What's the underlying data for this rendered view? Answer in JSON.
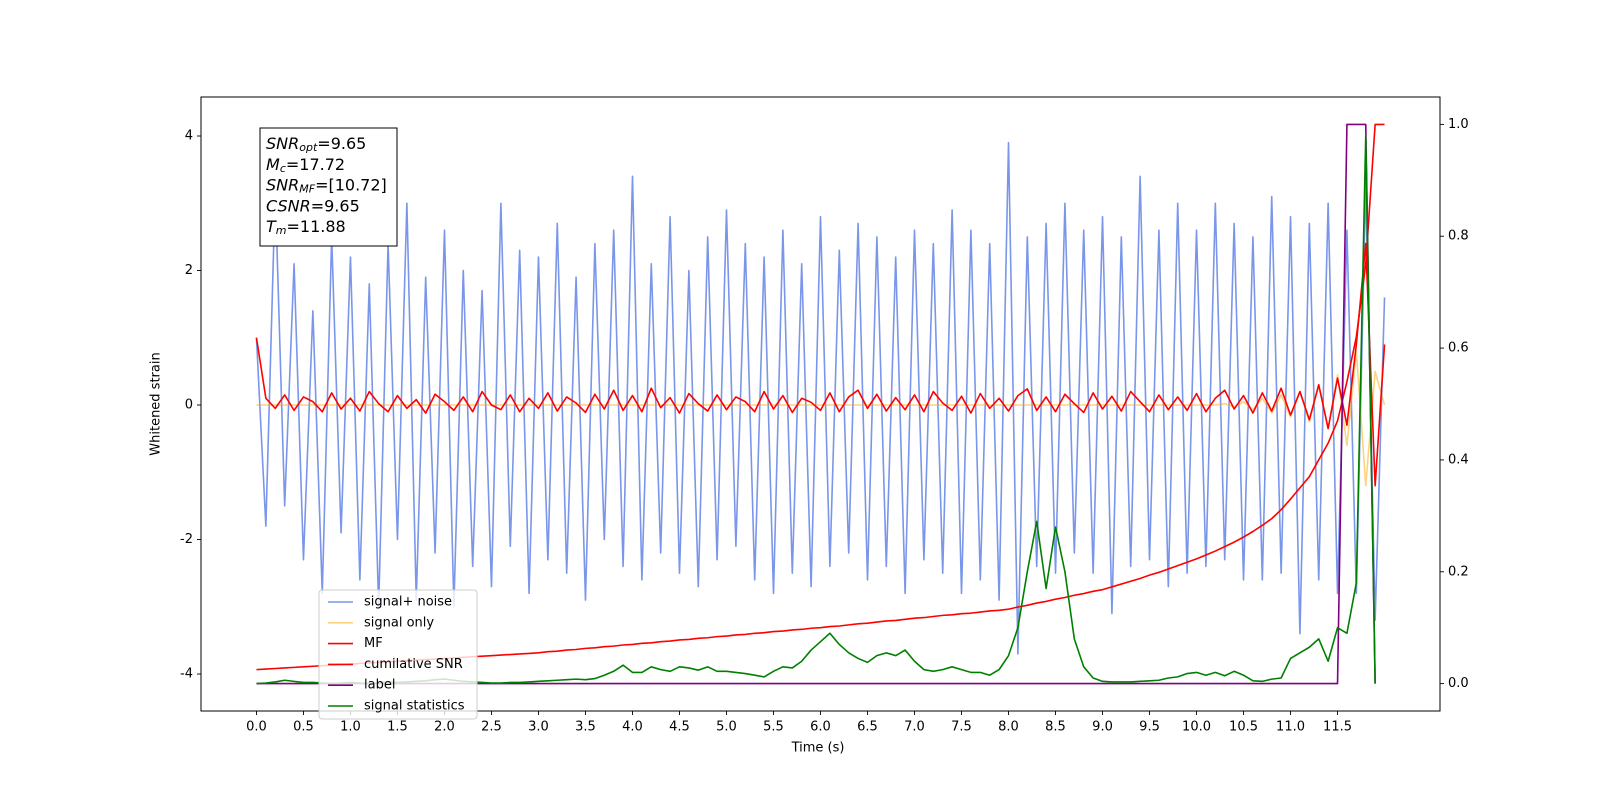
{
  "chart_data": {
    "type": "line",
    "xlabel": "Time (s)",
    "ylabel": "Whitened strain",
    "xlim": [
      -0.59,
      12.59
    ],
    "ylim": [
      -4.55,
      4.58
    ],
    "y2lim": [
      -0.049,
      1.049
    ],
    "xticks": [
      {
        "value": 0,
        "label": "0.0"
      },
      {
        "value": 0.5,
        "label": "0.5"
      },
      {
        "value": 1,
        "label": "1.0"
      },
      {
        "value": 1.5,
        "label": "1.5"
      },
      {
        "value": 2,
        "label": "2.0"
      },
      {
        "value": 2.5,
        "label": "2.5"
      },
      {
        "value": 3,
        "label": "3.0"
      },
      {
        "value": 3.5,
        "label": "3.5"
      },
      {
        "value": 4,
        "label": "4.0"
      },
      {
        "value": 4.5,
        "label": "4.5"
      },
      {
        "value": 5,
        "label": "5.0"
      },
      {
        "value": 5.5,
        "label": "5.5"
      },
      {
        "value": 6,
        "label": "6.0"
      },
      {
        "value": 6.5,
        "label": "6.5"
      },
      {
        "value": 7,
        "label": "7.0"
      },
      {
        "value": 7.5,
        "label": "7.5"
      },
      {
        "value": 8,
        "label": "8.0"
      },
      {
        "value": 8.5,
        "label": "8.5"
      },
      {
        "value": 9,
        "label": "9.0"
      },
      {
        "value": 9.5,
        "label": "9.5"
      },
      {
        "value": 10,
        "label": "10.0"
      },
      {
        "value": 10.5,
        "label": "10.5"
      },
      {
        "value": 11,
        "label": "11.0"
      },
      {
        "value": 11.5,
        "label": "11.5"
      }
    ],
    "yticks": [
      -4,
      -2,
      0,
      2,
      4
    ],
    "y2ticks": [
      {
        "value": 0,
        "label": "0.0"
      },
      {
        "value": 0.2,
        "label": "0.2"
      },
      {
        "value": 0.4,
        "label": "0.4"
      },
      {
        "value": 0.6,
        "label": "0.6"
      },
      {
        "value": 0.8,
        "label": "0.8"
      },
      {
        "value": 1,
        "label": "1.0"
      }
    ],
    "legend": "best",
    "annotations": [
      {
        "symbol": "SNR",
        "sub": "opt",
        "text": "=9.65"
      },
      {
        "symbol": "M",
        "sub": "c",
        "text": "=17.72"
      },
      {
        "symbol": "SNR",
        "sub": "MF",
        "text": "=[10.72]"
      },
      {
        "symbol": "CSNR",
        "text": "=9.65"
      },
      {
        "symbol": "T",
        "sub": "m",
        "text": "=11.88"
      }
    ],
    "x": [
      0,
      0.1,
      0.2,
      0.3,
      0.4,
      0.5,
      0.6,
      0.7,
      0.8,
      0.9,
      1,
      1.1,
      1.2,
      1.3,
      1.4,
      1.5,
      1.6,
      1.7,
      1.8,
      1.9,
      2,
      2.1,
      2.2,
      2.3,
      2.4,
      2.5,
      2.6,
      2.7,
      2.8,
      2.9,
      3,
      3.1,
      3.2,
      3.3,
      3.4,
      3.5,
      3.6,
      3.7,
      3.8,
      3.9,
      4,
      4.1,
      4.2,
      4.3,
      4.4,
      4.5,
      4.6,
      4.7,
      4.8,
      4.9,
      5,
      5.1,
      5.2,
      5.3,
      5.4,
      5.5,
      5.6,
      5.7,
      5.8,
      5.9,
      6,
      6.1,
      6.2,
      6.3,
      6.4,
      6.5,
      6.6,
      6.7,
      6.8,
      6.9,
      7,
      7.1,
      7.2,
      7.3,
      7.4,
      7.5,
      7.6,
      7.7,
      7.8,
      7.9,
      8,
      8.1,
      8.2,
      8.3,
      8.4,
      8.5,
      8.6,
      8.7,
      8.8,
      8.9,
      9,
      9.1,
      9.2,
      9.3,
      9.4,
      9.5,
      9.6,
      9.7,
      9.8,
      9.9,
      10,
      10.1,
      10.2,
      10.3,
      10.4,
      10.5,
      10.6,
      10.7,
      10.8,
      10.9,
      11,
      11.1,
      11.2,
      11.3,
      11.4,
      11.5,
      11.6,
      11.7,
      11.8,
      11.9,
      12
    ],
    "series": [
      {
        "name": "signal+ noise",
        "color": "#4169e1",
        "alpha": 0.7,
        "values": [
          1.0,
          -1.8,
          3.2,
          -1.5,
          2.1,
          -2.3,
          1.4,
          -2.8,
          2.5,
          -1.9,
          2.2,
          -2.6,
          1.8,
          -3.0,
          2.4,
          -2.0,
          3.0,
          -2.9,
          1.9,
          -2.2,
          2.6,
          -3.0,
          2.0,
          -2.4,
          1.7,
          -2.7,
          3.0,
          -2.1,
          2.3,
          -2.8,
          2.2,
          -2.3,
          2.7,
          -2.5,
          1.9,
          -2.9,
          2.4,
          -2.0,
          2.6,
          -2.4,
          3.4,
          -2.6,
          2.1,
          -2.2,
          2.8,
          -2.5,
          2.0,
          -2.7,
          2.5,
          -2.3,
          2.9,
          -2.1,
          2.4,
          -2.6,
          2.2,
          -2.8,
          2.6,
          -2.5,
          2.1,
          -2.7,
          2.8,
          -2.4,
          2.3,
          -2.2,
          2.7,
          -2.6,
          2.5,
          -2.4,
          2.2,
          -2.8,
          2.6,
          -2.3,
          2.4,
          -2.5,
          2.9,
          -2.8,
          2.6,
          -2.6,
          2.4,
          -2.9,
          3.9,
          -3.7,
          2.5,
          -2.4,
          2.7,
          -2.5,
          3.0,
          -2.2,
          2.6,
          -2.5,
          2.8,
          -3.1,
          2.5,
          -2.4,
          3.4,
          -2.3,
          2.6,
          -2.7,
          3.0,
          -2.5,
          2.6,
          -2.4,
          3.0,
          -2.3,
          2.7,
          -2.6,
          2.5,
          -2.6,
          3.1,
          -2.5,
          2.8,
          -3.4,
          2.7,
          -2.6,
          3.0,
          -2.8,
          2.6,
          -2.8,
          3.3,
          -3.2,
          1.6
        ]
      },
      {
        "name": "signal only",
        "color": "orange",
        "alpha": 0.5,
        "values": [
          0,
          0,
          0,
          0,
          0,
          0,
          0,
          0,
          0,
          0,
          0,
          0,
          0,
          0,
          0,
          0,
          0,
          0,
          0,
          0,
          0,
          0,
          0,
          0,
          0,
          0,
          0,
          0,
          0,
          0,
          0,
          0,
          0,
          0,
          0,
          0,
          0,
          0,
          0,
          0,
          0,
          0,
          0,
          0,
          0,
          0,
          0,
          0,
          0,
          0,
          0,
          0,
          0,
          0,
          0,
          0,
          0,
          0,
          0,
          0,
          0,
          0,
          0,
          0,
          0,
          0,
          0,
          0,
          0,
          0,
          0,
          0,
          0,
          0,
          0,
          0,
          0,
          0,
          0,
          0,
          0,
          0,
          0,
          0,
          0,
          0,
          0,
          0,
          0,
          0,
          0,
          0,
          0,
          0,
          0,
          0,
          0,
          0,
          0,
          0,
          0,
          0,
          0,
          0.02,
          -0.03,
          0.05,
          -0.07,
          0.1,
          -0.12,
          0.15,
          -0.18,
          0.2,
          -0.25,
          0.3,
          -0.35,
          0.45,
          -0.6,
          0.8,
          -1.2,
          0.5,
          0
        ]
      },
      {
        "name": "MF",
        "color": "red",
        "alpha": 1,
        "values": [
          1.0,
          0.1,
          -0.05,
          0.15,
          -0.08,
          0.12,
          0.05,
          -0.1,
          0.18,
          -0.06,
          0.1,
          -0.09,
          0.2,
          0.02,
          -0.1,
          0.14,
          -0.05,
          0.08,
          -0.12,
          0.16,
          0.05,
          -0.08,
          0.12,
          -0.1,
          0.2,
          0.0,
          -0.07,
          0.15,
          -0.1,
          0.1,
          -0.05,
          0.18,
          -0.09,
          0.12,
          0.03,
          -0.11,
          0.16,
          -0.06,
          0.22,
          -0.08,
          0.14,
          -0.1,
          0.25,
          -0.04,
          0.11,
          -0.12,
          0.17,
          0.02,
          -0.09,
          0.15,
          -0.07,
          0.12,
          0.05,
          -0.1,
          0.2,
          -0.06,
          0.14,
          -0.11,
          0.1,
          0.04,
          -0.08,
          0.18,
          -0.1,
          0.12,
          0.22,
          -0.05,
          0.16,
          -0.09,
          0.11,
          -0.07,
          0.15,
          -0.1,
          0.2,
          0.03,
          -0.08,
          0.13,
          -0.12,
          0.17,
          -0.05,
          0.1,
          -0.09,
          0.14,
          0.24,
          -0.08,
          0.12,
          -0.1,
          0.16,
          0.02,
          -0.11,
          0.18,
          -0.06,
          0.13,
          -0.09,
          0.2,
          0.05,
          -0.1,
          0.15,
          -0.07,
          0.12,
          -0.08,
          0.17,
          -0.1,
          0.1,
          0.22,
          -0.06,
          0.14,
          -0.12,
          0.18,
          -0.09,
          0.25,
          -0.15,
          0.2,
          -0.22,
          0.3,
          -0.35,
          0.4,
          -0.3,
          0.9,
          2.4,
          -1.2,
          0.9
        ]
      },
      {
        "name": "cumilative SNR",
        "color": "red",
        "alpha": 1,
        "axis": "y2",
        "values": [
          0.025,
          0.026,
          0.027,
          0.028,
          0.029,
          0.03,
          0.031,
          0.032,
          0.033,
          0.034,
          0.035,
          0.036,
          0.037,
          0.038,
          0.039,
          0.04,
          0.041,
          0.042,
          0.043,
          0.044,
          0.045,
          0.046,
          0.047,
          0.048,
          0.049,
          0.05,
          0.051,
          0.052,
          0.053,
          0.054,
          0.055,
          0.057,
          0.058,
          0.06,
          0.061,
          0.063,
          0.064,
          0.066,
          0.067,
          0.069,
          0.07,
          0.072,
          0.073,
          0.075,
          0.076,
          0.078,
          0.079,
          0.081,
          0.082,
          0.084,
          0.085,
          0.087,
          0.088,
          0.09,
          0.091,
          0.093,
          0.094,
          0.096,
          0.097,
          0.099,
          0.1,
          0.102,
          0.103,
          0.105,
          0.107,
          0.108,
          0.11,
          0.112,
          0.113,
          0.115,
          0.117,
          0.118,
          0.12,
          0.122,
          0.123,
          0.125,
          0.126,
          0.128,
          0.13,
          0.131,
          0.133,
          0.137,
          0.14,
          0.144,
          0.147,
          0.151,
          0.154,
          0.158,
          0.161,
          0.165,
          0.168,
          0.173,
          0.178,
          0.183,
          0.188,
          0.194,
          0.199,
          0.205,
          0.211,
          0.217,
          0.223,
          0.23,
          0.237,
          0.245,
          0.253,
          0.262,
          0.272,
          0.283,
          0.295,
          0.311,
          0.33,
          0.35,
          0.37,
          0.4,
          0.43,
          0.47,
          0.54,
          0.62,
          0.75,
          1.0,
          1.0
        ]
      },
      {
        "name": "label",
        "color": "purple",
        "alpha": 1,
        "axis": "y2",
        "values": [
          0,
          0,
          0,
          0,
          0,
          0,
          0,
          0,
          0,
          0,
          0,
          0,
          0,
          0,
          0,
          0,
          0,
          0,
          0,
          0,
          0,
          0,
          0,
          0,
          0,
          0,
          0,
          0,
          0,
          0,
          0,
          0,
          0,
          0,
          0,
          0,
          0,
          0,
          0,
          0,
          0,
          0,
          0,
          0,
          0,
          0,
          0,
          0,
          0,
          0,
          0,
          0,
          0,
          0,
          0,
          0,
          0,
          0,
          0,
          0,
          0,
          0,
          0,
          0,
          0,
          0,
          0,
          0,
          0,
          0,
          0,
          0,
          0,
          0,
          0,
          0,
          0,
          0,
          0,
          0,
          0,
          0,
          0,
          0,
          0,
          0,
          0,
          0,
          0,
          0,
          0,
          0,
          0,
          0,
          0,
          0,
          0,
          0,
          0,
          0,
          0,
          0,
          0,
          0,
          0,
          0,
          0,
          0,
          0,
          0,
          0,
          0,
          0,
          0,
          0,
          0,
          1,
          1,
          1,
          0,
          null
        ]
      },
      {
        "name": "signal statistics",
        "color": "green",
        "alpha": 1,
        "axis": "y2",
        "values": [
          0,
          0.001,
          0.003,
          0.006,
          0.004,
          0.002,
          0.002,
          0.001,
          0,
          0.001,
          0.002,
          0.001,
          0,
          0.001,
          0.003,
          0.002,
          0.003,
          0.004,
          0.005,
          0.007,
          0.008,
          0.006,
          0.004,
          0.003,
          0.002,
          0.001,
          0.001,
          0.002,
          0.002,
          0.003,
          0.004,
          0.005,
          0.006,
          0.007,
          0.008,
          0.007,
          0.009,
          0.015,
          0.022,
          0.033,
          0.02,
          0.02,
          0.03,
          0.025,
          0.022,
          0.03,
          0.028,
          0.024,
          0.03,
          0.022,
          0.022,
          0.02,
          0.018,
          0.015,
          0.012,
          0.022,
          0.03,
          0.028,
          0.04,
          0.06,
          0.075,
          0.09,
          0.07,
          0.055,
          0.045,
          0.038,
          0.05,
          0.055,
          0.05,
          0.06,
          0.04,
          0.025,
          0.022,
          0.025,
          0.03,
          0.025,
          0.02,
          0.02,
          0.015,
          0.025,
          0.05,
          0.1,
          0.2,
          0.29,
          0.17,
          0.28,
          0.2,
          0.08,
          0.03,
          0.01,
          0.004,
          0.003,
          0.003,
          0.003,
          0.004,
          0.005,
          0.006,
          0.01,
          0.012,
          0.018,
          0.02,
          0.015,
          0.02,
          0.014,
          0.022,
          0.015,
          0.005,
          0.004,
          0.008,
          0.01,
          0.045,
          0.055,
          0.065,
          0.08,
          0.04,
          0.1,
          0.09,
          0.18,
          0.98,
          0.0,
          null
        ]
      }
    ]
  }
}
